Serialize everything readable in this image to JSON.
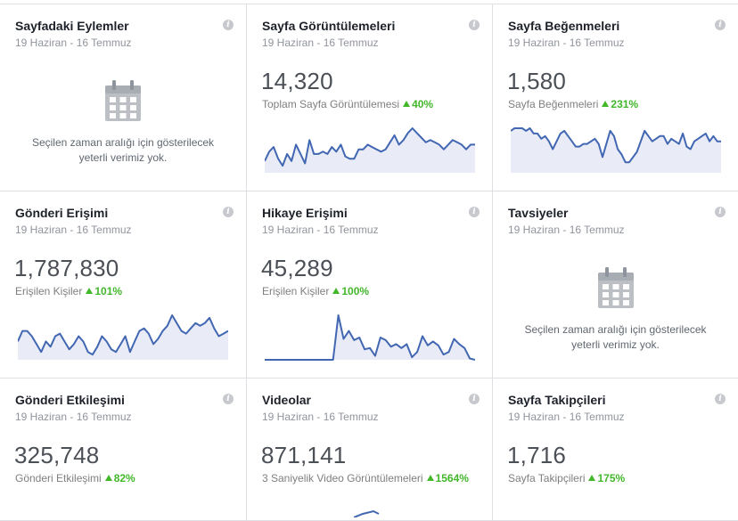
{
  "cards": [
    {
      "title": "Sayfadaki Eylemler",
      "date": "19 Haziran - 16 Temmuz",
      "empty_text": "Seçilen zaman aralığı için gösterilecek yeterli verimiz yok.",
      "empty_line1": "Seçilen zaman aralığı için gösterilecek",
      "empty_line2": "yeterli verimiz yok.",
      "icon": "calendar-icon"
    },
    {
      "title": "Sayfa Görüntülemeleri",
      "date": "19 Haziran - 16 Temmuz",
      "value": "14,320",
      "label": "Toplam Sayfa Görüntülemesi",
      "change": "40%",
      "trend": [
        5,
        9,
        11,
        6,
        3,
        8,
        5,
        12,
        8,
        4,
        14,
        8,
        8,
        9,
        8,
        11,
        9,
        12,
        7,
        6,
        6,
        10,
        10,
        12,
        11,
        10,
        9,
        10,
        13,
        16,
        12,
        14,
        17,
        19,
        17,
        15,
        13,
        14,
        13,
        12,
        10,
        12,
        14,
        13,
        12,
        10,
        12,
        12
      ]
    },
    {
      "title": "Sayfa Beğenmeleri",
      "date": "19 Haziran - 16 Temmuz",
      "value": "1,580",
      "label": "Sayfa Beğenmeleri",
      "change": "231%",
      "trend": [
        16,
        17,
        17,
        17,
        16,
        17,
        15,
        15,
        13,
        14,
        12,
        9,
        12,
        15,
        16,
        14,
        12,
        10,
        10,
        11,
        11,
        12,
        13,
        11,
        6,
        11,
        16,
        14,
        9,
        7,
        4,
        4,
        6,
        8,
        12,
        16,
        14,
        12,
        13,
        14,
        14,
        11,
        13,
        12,
        11,
        15,
        10,
        9,
        12,
        13,
        14,
        15,
        12,
        14,
        12,
        12
      ]
    },
    {
      "title": "Gönderi Erişimi",
      "date": "19 Haziran - 16 Temmuz",
      "value": "1,787,830",
      "label": "Erişilen Kişiler",
      "change": "101%",
      "trend": [
        7,
        11,
        11,
        9,
        6,
        3,
        7,
        5,
        9,
        10,
        7,
        4,
        6,
        9,
        7,
        3,
        2,
        5,
        9,
        7,
        4,
        3,
        6,
        9,
        3,
        7,
        11,
        12,
        10,
        6,
        8,
        11,
        13,
        17,
        14,
        11,
        10,
        12,
        14,
        13,
        14,
        16,
        12,
        9,
        10,
        11
      ]
    },
    {
      "title": "Hikaye Erişimi",
      "date": "19 Haziran - 16 Temmuz",
      "value": "45,289",
      "label": "Erişilen Kişiler",
      "change": "100%",
      "trend": [
        0,
        0,
        0,
        0,
        0,
        0,
        0,
        0,
        0,
        0,
        0,
        0,
        0,
        0,
        34,
        16,
        22,
        15,
        17,
        8,
        9,
        3,
        17,
        15,
        10,
        12,
        9,
        12,
        2,
        6,
        18,
        11,
        14,
        11,
        4,
        6,
        16,
        12,
        9,
        1,
        0
      ]
    },
    {
      "title": "Tavsiyeler",
      "date": "19 Haziran - 16 Temmuz",
      "empty_text": "Seçilen zaman aralığı için gösterilecek yeterli verimiz yok.",
      "empty_line1": "Seçilen zaman aralığı için gösterilecek",
      "empty_line2": "yeterli verimiz yok.",
      "icon": "calendar-icon"
    },
    {
      "title": "Gönderi Etkileşimi",
      "date": "19 Haziran - 16 Temmuz",
      "value": "325,748",
      "label": "Gönderi Etkileşimi",
      "change": "82%"
    },
    {
      "title": "Videolar",
      "date": "19 Haziran - 16 Temmuz",
      "value": "871,141",
      "label": "3 Saniyelik Video Görüntülemeleri",
      "change": "1564%"
    },
    {
      "title": "Sayfa Takipçileri",
      "date": "19 Haziran - 16 Temmuz",
      "value": "1,716",
      "label": "Sayfa Takipçileri",
      "change": "175%"
    }
  ],
  "colors": {
    "line": "#4267b2",
    "fill": "#e9ebf7",
    "positive": "#42b72a"
  }
}
